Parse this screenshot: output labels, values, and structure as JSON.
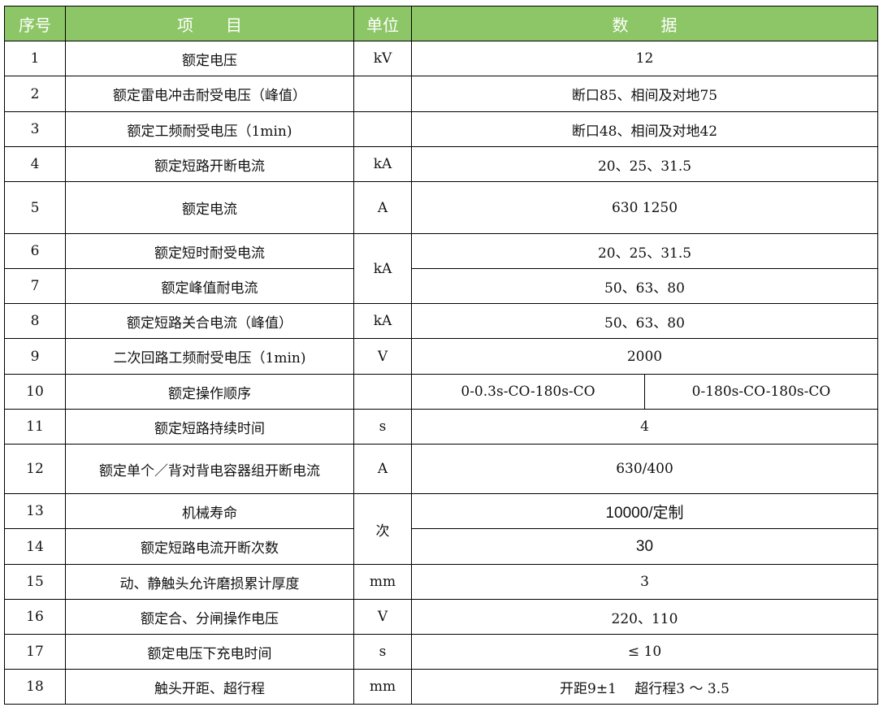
{
  "header": {
    "no": "序号",
    "item": "项　　目",
    "unit": "单位",
    "data": "数　　据"
  },
  "colors": {
    "header_bg": "#8dc666",
    "header_text": "#ffffff"
  },
  "rows": [
    {
      "no": "1",
      "item": "额定电压",
      "unit": "kV",
      "value": "12"
    },
    {
      "no": "2",
      "item": "额定雷电冲击耐受电压（峰值）",
      "unit": "",
      "value": "断口85、相间及对地75"
    },
    {
      "no": "3",
      "item": "额定工频耐受电压（1min)",
      "unit": "",
      "value": "断口48、相间及对地42"
    },
    {
      "no": "4",
      "item": "额定短路开断电流",
      "unit": "kA",
      "value": "20、25、31.5"
    },
    {
      "no": "5",
      "item": "额定电流",
      "unit": "A",
      "value": "630 1250"
    },
    {
      "no": "6",
      "item": "额定短时耐受电流",
      "unit": "kA",
      "value": "20、25、31.5"
    },
    {
      "no": "7",
      "item": "额定峰值耐电流",
      "unit": "",
      "value": "50、63、80"
    },
    {
      "no": "8",
      "item": "额定短路关合电流（峰值）",
      "unit": "kA",
      "value": "50、63、80"
    },
    {
      "no": "9",
      "item": "二次回路工频耐受电压（1min)",
      "unit": "V",
      "value": "2000"
    },
    {
      "no": "10",
      "item": "额定操作顺序",
      "unit": "",
      "value": "0-0.3s-CO-180s-CO",
      "value2": "0-180s-CO-180s-CO"
    },
    {
      "no": "11",
      "item": "额定短路持续时间",
      "unit": "s",
      "value": "4"
    },
    {
      "no": "12",
      "item": "额定单个／背对背电容器组开断电流",
      "unit": "A",
      "value": "630/400"
    },
    {
      "no": "13",
      "item": "机械寿命",
      "unit": "次",
      "value": "10000/定制"
    },
    {
      "no": "14",
      "item": "额定短路电流开断次数",
      "unit": "",
      "value": "30"
    },
    {
      "no": "15",
      "item": "动、静触头允许磨损累计厚度",
      "unit": "mm",
      "value": "3"
    },
    {
      "no": "16",
      "item": "额定合、分闸操作电压",
      "unit": "V",
      "value": "220、110"
    },
    {
      "no": "17",
      "item": "额定电压下充电时间",
      "unit": "s",
      "value": "≤ 10"
    },
    {
      "no": "18",
      "item": "触头开距、超行程",
      "unit": "mm",
      "value": "开距9±1　 超行程3 ～ 3.5"
    }
  ]
}
